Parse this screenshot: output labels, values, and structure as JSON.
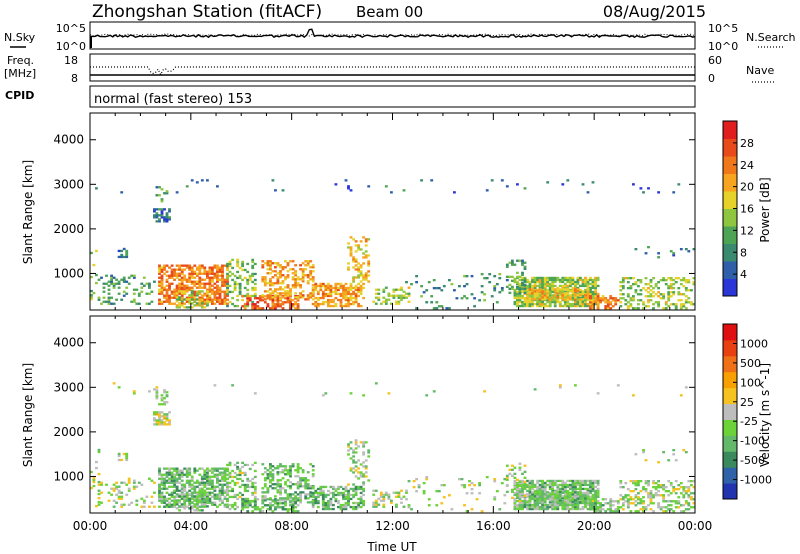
{
  "header": {
    "station": "Zhongshan Station (fitACF)",
    "beam": "Beam 00",
    "date": "08/Aug/2015"
  },
  "colors": {
    "power_scale": [
      "#2a37d6",
      "#2f5fa8",
      "#3a8a70",
      "#4ea455",
      "#8ec63f",
      "#e6d22a",
      "#f7a420",
      "#f0781a",
      "#e84a1a",
      "#e01e1e"
    ],
    "velocity_scale": [
      "#2233b0",
      "#2f62a8",
      "#3b8a5e",
      "#63b86a",
      "#6bd23a",
      "#bdbdbd",
      "#f5c21f",
      "#f7a000",
      "#f07018",
      "#e84010",
      "#e01010"
    ]
  },
  "chart_data": [
    {
      "type": "line",
      "panel": "sky-noise",
      "labels": {
        "left_top": "N.Sky",
        "right_top": "N.Search"
      },
      "left_ticks": [
        "10^5",
        "10^0"
      ],
      "right_ticks": [
        "10^5",
        "10^0"
      ],
      "series": [
        {
          "name": "N.Sky",
          "style": "solid"
        },
        {
          "name": "N.Search",
          "style": "dotted"
        }
      ]
    },
    {
      "type": "line",
      "panel": "frequency",
      "labels": {
        "left_top": "Freq.",
        "left_unit": "[MHz]",
        "right_top": "Nave"
      },
      "left_ticks": [
        "18",
        "8"
      ],
      "right_ticks": [
        "60",
        "0"
      ],
      "series": [
        {
          "name": "Freq.",
          "style": "solid"
        },
        {
          "name": "Nave",
          "style": "dotted"
        }
      ]
    },
    {
      "type": "table",
      "panel": "cpid",
      "label": "CPID",
      "text": "normal (fast stereo) 153"
    },
    {
      "type": "heatmap",
      "panel": "power",
      "ylabel": "Slant Range [km]",
      "yticks": [
        "4000",
        "3000",
        "2000",
        "1000"
      ],
      "ylim": [
        180,
        4600
      ],
      "xlim": [
        0,
        24
      ],
      "colorbar": {
        "label": "Power [dB]",
        "ticks": [
          "28",
          "24",
          "20",
          "16",
          "12",
          "8",
          "4"
        ],
        "range": [
          0,
          30
        ]
      },
      "patches": [
        {
          "t0": 0.0,
          "t1": 0.35,
          "r0": 180,
          "r1": 1600,
          "v": 12,
          "d": 0.12
        },
        {
          "t0": 1.1,
          "t1": 1.6,
          "r0": 1350,
          "r1": 1550,
          "v": 6,
          "d": 0.45
        },
        {
          "t0": 0.3,
          "t1": 2.6,
          "r0": 300,
          "r1": 950,
          "v": 10,
          "d": 0.22
        },
        {
          "t0": 2.5,
          "t1": 3.2,
          "r0": 2150,
          "r1": 2450,
          "v": 6,
          "d": 0.6
        },
        {
          "t0": 2.6,
          "t1": 3.1,
          "r0": 2600,
          "r1": 2950,
          "v": 9,
          "d": 0.25
        },
        {
          "t0": 2.7,
          "t1": 5.4,
          "r0": 300,
          "r1": 1200,
          "v": 22,
          "d": 0.65
        },
        {
          "t0": 3.4,
          "t1": 4.6,
          "r0": 220,
          "r1": 600,
          "v": 14,
          "d": 0.5
        },
        {
          "t0": 5.4,
          "t1": 6.5,
          "r0": 250,
          "r1": 1300,
          "v": 12,
          "d": 0.35
        },
        {
          "t0": 6.0,
          "t1": 8.2,
          "r0": 200,
          "r1": 500,
          "v": 24,
          "d": 0.55
        },
        {
          "t0": 6.8,
          "t1": 8.8,
          "r0": 400,
          "r1": 1300,
          "v": 20,
          "d": 0.45
        },
        {
          "t0": 8.8,
          "t1": 10.8,
          "r0": 250,
          "r1": 750,
          "v": 20,
          "d": 0.6
        },
        {
          "t0": 10.2,
          "t1": 11.0,
          "r0": 800,
          "r1": 1800,
          "v": 18,
          "d": 0.3
        },
        {
          "t0": 11.2,
          "t1": 12.6,
          "r0": 300,
          "r1": 700,
          "v": 14,
          "d": 0.3
        },
        {
          "t0": 12.5,
          "t1": 16.5,
          "r0": 200,
          "r1": 1000,
          "v": 8,
          "d": 0.07
        },
        {
          "t0": 16.8,
          "t1": 20.2,
          "r0": 250,
          "r1": 900,
          "v": 14,
          "d": 0.8
        },
        {
          "t0": 17.3,
          "t1": 19.8,
          "r0": 400,
          "r1": 650,
          "v": 18,
          "d": 0.6
        },
        {
          "t0": 16.5,
          "t1": 17.3,
          "r0": 500,
          "r1": 1300,
          "v": 10,
          "d": 0.3
        },
        {
          "t0": 19.8,
          "t1": 21.0,
          "r0": 200,
          "r1": 500,
          "v": 22,
          "d": 0.6
        },
        {
          "t0": 21.0,
          "t1": 24.0,
          "r0": 200,
          "r1": 900,
          "v": 14,
          "d": 0.35
        },
        {
          "t0": 21.5,
          "t1": 24.0,
          "r0": 1300,
          "r1": 1600,
          "v": 6,
          "d": 0.1
        },
        {
          "t0": 0.0,
          "t1": 24.0,
          "r0": 2800,
          "r1": 3100,
          "v": 5,
          "d": 0.02
        }
      ]
    },
    {
      "type": "heatmap",
      "panel": "velocity",
      "ylabel": "Slant Range [km]",
      "yticks": [
        "4000",
        "3000",
        "2000",
        "1000"
      ],
      "ylim": [
        180,
        4600
      ],
      "xlim": [
        0,
        24
      ],
      "xlabel": "Time UT",
      "xticks": [
        "00:00",
        "04:00",
        "08:00",
        "12:00",
        "16:00",
        "20:00",
        "00:00"
      ],
      "colorbar": {
        "label": "Velocity [m s^-1]",
        "ticks": [
          "1000",
          "500",
          "100",
          "25",
          "-25",
          "-100",
          "-500",
          "-1000"
        ],
        "range": [
          -1200,
          1200
        ]
      },
      "patches": [
        {
          "t0": 0.0,
          "t1": 0.35,
          "r0": 180,
          "r1": 1600,
          "v": -150,
          "d": 0.12
        },
        {
          "t0": 1.1,
          "t1": 1.6,
          "r0": 1350,
          "r1": 1550,
          "v": 0,
          "d": 0.45
        },
        {
          "t0": 0.3,
          "t1": 2.6,
          "r0": 300,
          "r1": 950,
          "v": -80,
          "d": 0.22
        },
        {
          "t0": 2.5,
          "t1": 3.2,
          "r0": 2150,
          "r1": 2450,
          "v": 0,
          "d": 0.6
        },
        {
          "t0": 2.6,
          "t1": 3.1,
          "r0": 2600,
          "r1": 2950,
          "v": -60,
          "d": 0.25
        },
        {
          "t0": 2.7,
          "t1": 5.4,
          "r0": 300,
          "r1": 1200,
          "v": -350,
          "d": 0.65
        },
        {
          "t0": 3.4,
          "t1": 4.6,
          "r0": 220,
          "r1": 600,
          "v": -250,
          "d": 0.5
        },
        {
          "t0": 5.4,
          "t1": 6.5,
          "r0": 250,
          "r1": 1300,
          "v": -200,
          "d": 0.35
        },
        {
          "t0": 6.0,
          "t1": 8.2,
          "r0": 200,
          "r1": 500,
          "v": -400,
          "d": 0.55
        },
        {
          "t0": 6.8,
          "t1": 8.8,
          "r0": 400,
          "r1": 1300,
          "v": -300,
          "d": 0.45
        },
        {
          "t0": 8.8,
          "t1": 10.8,
          "r0": 250,
          "r1": 750,
          "v": -350,
          "d": 0.6
        },
        {
          "t0": 10.2,
          "t1": 11.0,
          "r0": 800,
          "r1": 1800,
          "v": -150,
          "d": 0.3
        },
        {
          "t0": 11.2,
          "t1": 12.6,
          "r0": 300,
          "r1": 700,
          "v": -150,
          "d": 0.3
        },
        {
          "t0": 12.5,
          "t1": 16.5,
          "r0": 200,
          "r1": 1000,
          "v": -120,
          "d": 0.07
        },
        {
          "t0": 16.8,
          "t1": 20.2,
          "r0": 250,
          "r1": 900,
          "v": -250,
          "d": 0.8
        },
        {
          "t0": 17.3,
          "t1": 19.8,
          "r0": 400,
          "r1": 650,
          "v": -300,
          "d": 0.6
        },
        {
          "t0": 16.5,
          "t1": 17.3,
          "r0": 500,
          "r1": 1300,
          "v": -80,
          "d": 0.3
        },
        {
          "t0": 19.8,
          "t1": 21.0,
          "r0": 200,
          "r1": 500,
          "v": -250,
          "d": 0.6
        },
        {
          "t0": 21.0,
          "t1": 24.0,
          "r0": 200,
          "r1": 900,
          "v": -120,
          "d": 0.35
        },
        {
          "t0": 21.5,
          "t1": 24.0,
          "r0": 1300,
          "r1": 1600,
          "v": -60,
          "d": 0.1
        },
        {
          "t0": 0.0,
          "t1": 24.0,
          "r0": 2800,
          "r1": 3100,
          "v": -80,
          "d": 0.02
        }
      ]
    }
  ]
}
